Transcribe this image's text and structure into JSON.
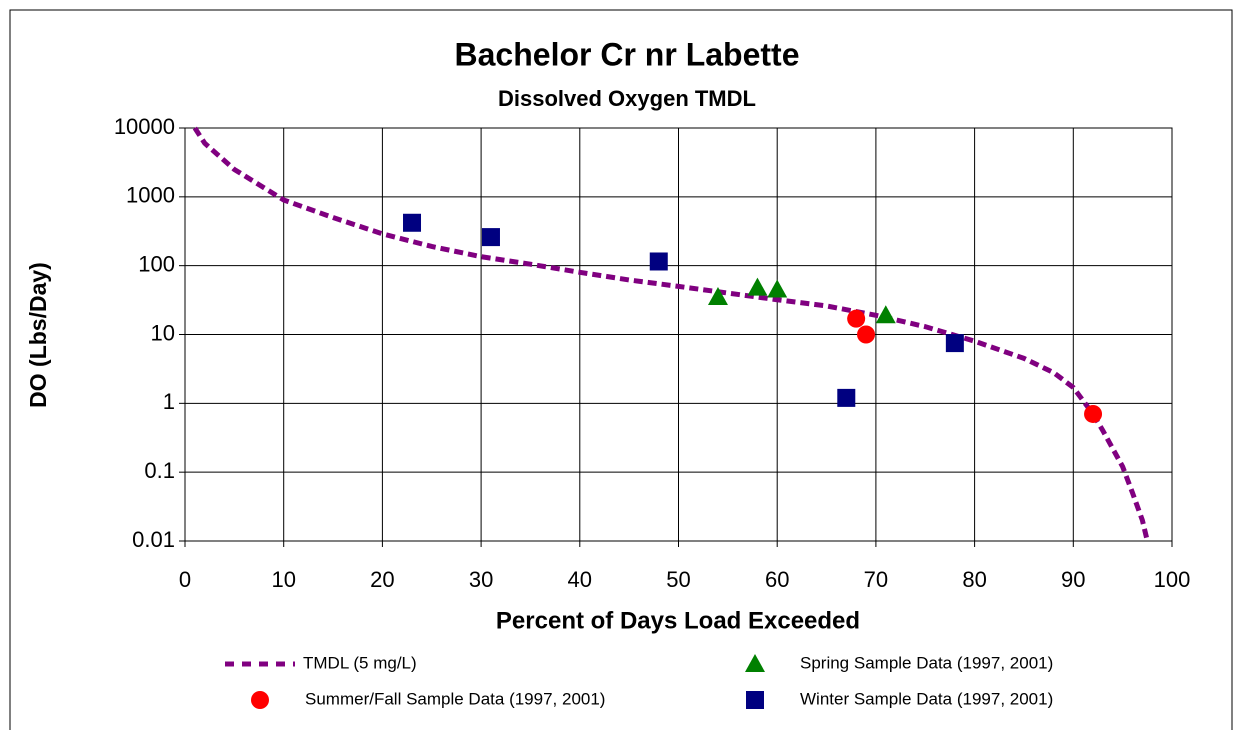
{
  "chart_data": {
    "type": "scatter",
    "title": "Bachelor Cr nr Labette",
    "subtitle": "Dissolved Oxygen TMDL",
    "x_label": "Percent of Days Load Exceeded",
    "y_label": "DO (Lbs/Day)",
    "xlim": [
      0,
      100
    ],
    "xticks": [
      0,
      10,
      20,
      30,
      40,
      50,
      60,
      70,
      80,
      90,
      100
    ],
    "ylim": [
      0.01,
      10000
    ],
    "yticks": [
      0.01,
      0.1,
      1,
      10,
      100,
      1000,
      10000
    ],
    "y_scale": "log",
    "grid": true,
    "series": [
      {
        "name": "TMDL (5 mg/L)",
        "color": "#800080",
        "marker": "dashed-line",
        "x": [
          1,
          2,
          5,
          10,
          15,
          20,
          25,
          30,
          35,
          40,
          45,
          50,
          55,
          60,
          65,
          70,
          75,
          80,
          85,
          88,
          90,
          92,
          93,
          95,
          96,
          97,
          97.5
        ],
        "values": [
          10000,
          6000,
          2500,
          900,
          500,
          290,
          190,
          135,
          105,
          80,
          62,
          50,
          40,
          32,
          26,
          19,
          13,
          8,
          4.5,
          2.8,
          1.7,
          0.7,
          0.4,
          0.12,
          0.05,
          0.02,
          0.01
        ]
      },
      {
        "name": "Spring Sample Data (1997, 2001)",
        "color": "#008000",
        "marker": "triangle",
        "x": [
          54,
          58,
          60,
          71
        ],
        "values": [
          35,
          48,
          45,
          19
        ]
      },
      {
        "name": "Summer/Fall Sample Data (1997, 2001)",
        "color": "#ff0000",
        "marker": "circle",
        "x": [
          68,
          69,
          92
        ],
        "values": [
          17,
          10,
          0.7
        ]
      },
      {
        "name": "Winter Sample Data (1997, 2001)",
        "color": "#000080",
        "marker": "square",
        "x": [
          23,
          31,
          48,
          67,
          78
        ],
        "values": [
          420,
          260,
          115,
          1.2,
          7.5
        ]
      }
    ]
  }
}
